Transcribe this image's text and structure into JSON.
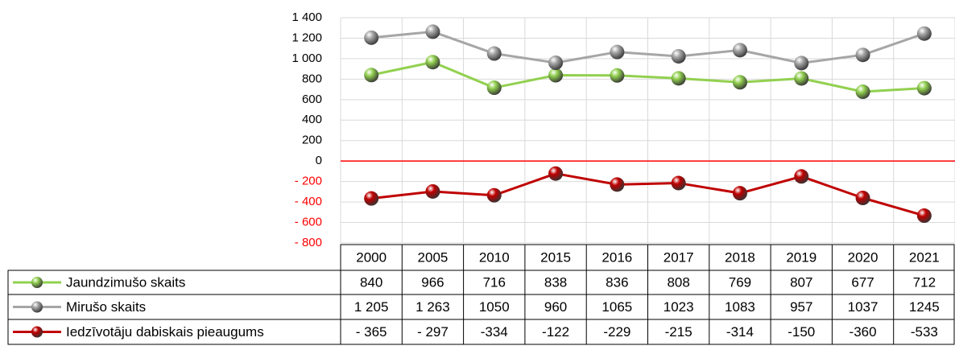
{
  "chart_data": {
    "type": "line",
    "categories": [
      "2000",
      "2005",
      "2010",
      "2015",
      "2016",
      "2017",
      "2018",
      "2019",
      "2020",
      "2021"
    ],
    "series": [
      {
        "name": "Jaundzimušo skaits",
        "color": "#92d050",
        "values": [
          840,
          966,
          716,
          838,
          836,
          808,
          769,
          807,
          677,
          712
        ],
        "value_labels": [
          "840",
          "966",
          "716",
          "838",
          "836",
          "808",
          "769",
          "807",
          "677",
          "712"
        ]
      },
      {
        "name": "Mirušo skaits",
        "color": "#a6a6a6",
        "values": [
          1205,
          1263,
          1050,
          960,
          1065,
          1023,
          1083,
          957,
          1037,
          1245
        ],
        "value_labels": [
          "1 205",
          "1 263",
          "1050",
          "960",
          "1065",
          "1023",
          "1083",
          "957",
          "1037",
          "1245"
        ]
      },
      {
        "name": "Iedzīvotāju dabiskais pieaugums",
        "color": "#c00000",
        "values": [
          -365,
          -297,
          -334,
          -122,
          -229,
          -215,
          -314,
          -150,
          -360,
          -533
        ],
        "value_labels": [
          "- 365",
          "- 297",
          "-334",
          "-122",
          "-229",
          "-215",
          "-314",
          "-150",
          "-360",
          "-533"
        ]
      }
    ],
    "ylim": [
      -800,
      1400
    ],
    "yticks": [
      {
        "value": 1400,
        "label": "1 400"
      },
      {
        "value": 1200,
        "label": "1 200"
      },
      {
        "value": 1000,
        "label": "1 000"
      },
      800,
      600,
      400,
      200,
      0,
      {
        "value": -200,
        "label": "- 200"
      },
      {
        "value": -400,
        "label": "- 400"
      },
      {
        "value": -600,
        "label": "- 600"
      },
      {
        "value": -800,
        "label": "- 800"
      }
    ],
    "negative_tick_color": "#ff0000",
    "zero_line_color": "#ff0000",
    "grid": true
  }
}
